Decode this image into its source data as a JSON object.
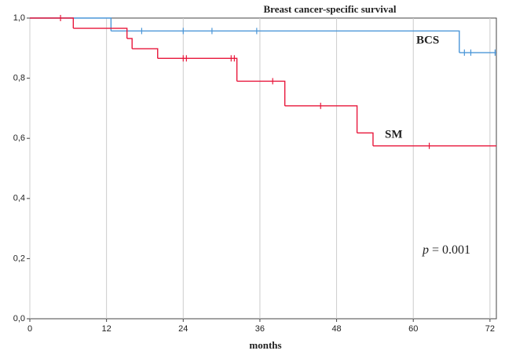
{
  "chart_data": {
    "type": "survival",
    "title": "Breast cancer-specific survival",
    "x_label": "months",
    "xlim": [
      0,
      73
    ],
    "ylim": [
      0,
      1
    ],
    "xticks": [
      0,
      12,
      24,
      36,
      48,
      60,
      72
    ],
    "yticks": [
      {
        "value": 0,
        "label": "0,0"
      },
      {
        "value": 0.2,
        "label": "0,2"
      },
      {
        "value": 0.4,
        "label": "0,4"
      },
      {
        "value": 0.6,
        "label": "0,6"
      },
      {
        "value": 0.8,
        "label": "0,8"
      },
      {
        "value": 1,
        "label": "1,0"
      }
    ],
    "grid": "x",
    "series": [
      {
        "name": "BCS",
        "color": "#4a96d8",
        "x": [
          0,
          12.7,
          67.2,
          73
        ],
        "values": [
          1,
          0.957,
          0.885,
          0.885
        ],
        "censored": {
          "x": [
            17.5,
            24,
            28.5,
            35.5,
            68,
            69,
            72.8
          ],
          "values": [
            0.957,
            0.957,
            0.957,
            0.957,
            0.885,
            0.885,
            0.885
          ]
        }
      },
      {
        "name": "SM",
        "color": "#e8173b",
        "x": [
          0,
          6.8,
          15.2,
          16,
          20,
          32.4,
          39.9,
          51.2,
          53.7,
          73
        ],
        "values": [
          1,
          0.966,
          0.932,
          0.898,
          0.866,
          0.79,
          0.708,
          0.618,
          0.575,
          0.575
        ],
        "censored": {
          "x": [
            4.8,
            24,
            24.5,
            31.5,
            32,
            38,
            45.5,
            62.5
          ],
          "values": [
            1,
            0.866,
            0.866,
            0.866,
            0.866,
            0.79,
            0.708,
            0.575
          ]
        }
      }
    ],
    "annotation": {
      "symbol": "p",
      "text": "= 0.001"
    }
  }
}
